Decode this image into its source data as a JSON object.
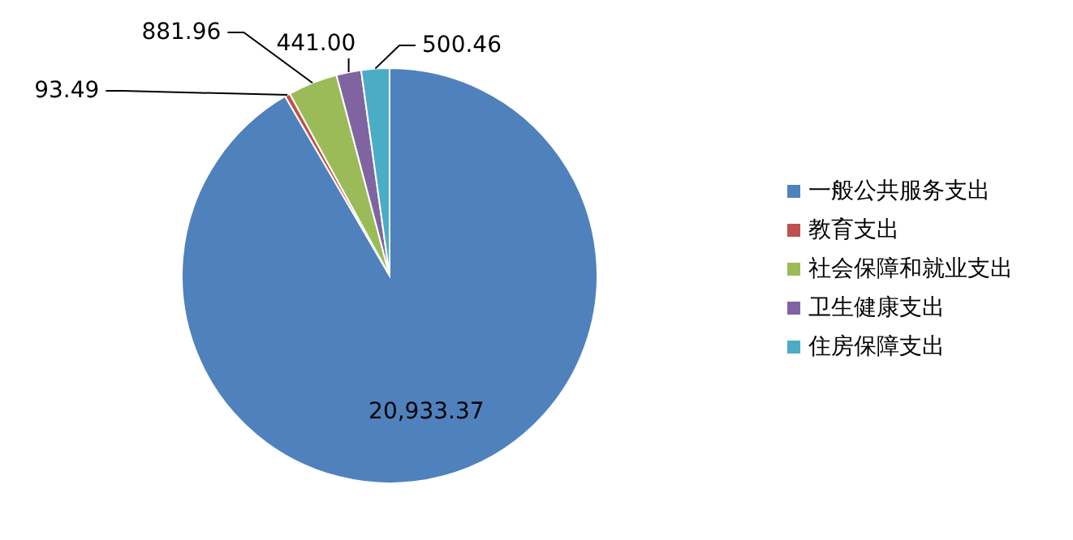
{
  "chart_data": {
    "type": "pie",
    "categories": [
      "一般公共服务支出",
      "教育支出",
      "社会保障和就业支出",
      "卫生健康支出",
      "住房保障支出"
    ],
    "values": [
      20933.37,
      93.49,
      881.96,
      441.0,
      500.46
    ],
    "colors": [
      "#4f81bd",
      "#c0504d",
      "#9bbb59",
      "#8064a2",
      "#4bacc6"
    ],
    "value_labels": [
      "20,933.37",
      "93.49",
      "881.96",
      "441.00",
      "500.46"
    ],
    "legend": "right"
  }
}
